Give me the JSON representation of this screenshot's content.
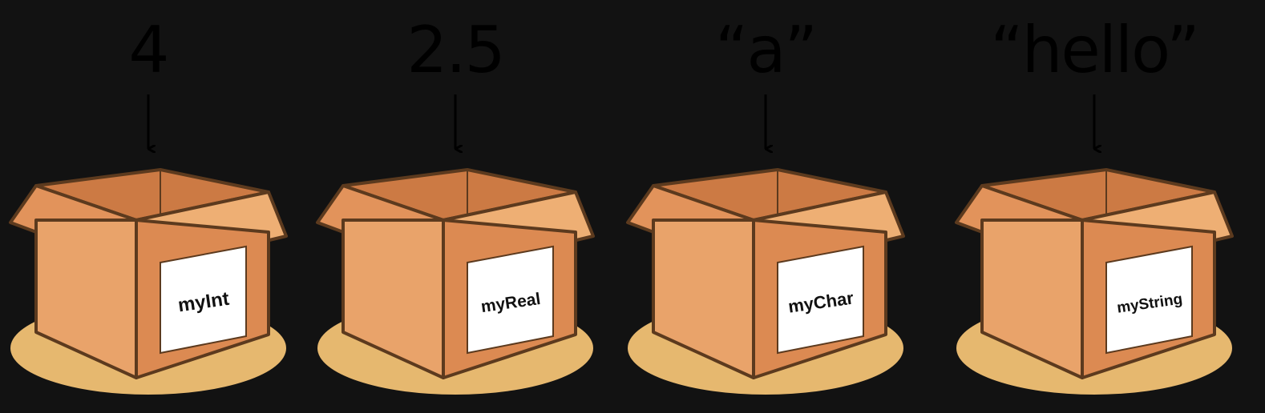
{
  "colors": {
    "background": "#121212",
    "shadow": "#e6b86f",
    "box_side": "#e9a36a",
    "box_front": "#dc8a52",
    "flap_light": "#eeaf74",
    "flap_dark": "#e2935b",
    "box_inside": "#cc7a44",
    "outline": "#5c3a1e",
    "label_bg": "#ffffff",
    "arrow": "#000000"
  },
  "boxes": [
    {
      "value": "4",
      "label": "myInt"
    },
    {
      "value": "2.5",
      "label": "myReal"
    },
    {
      "value": "“a”",
      "label": "myChar"
    },
    {
      "value": "“hello”",
      "label": "myString"
    }
  ]
}
